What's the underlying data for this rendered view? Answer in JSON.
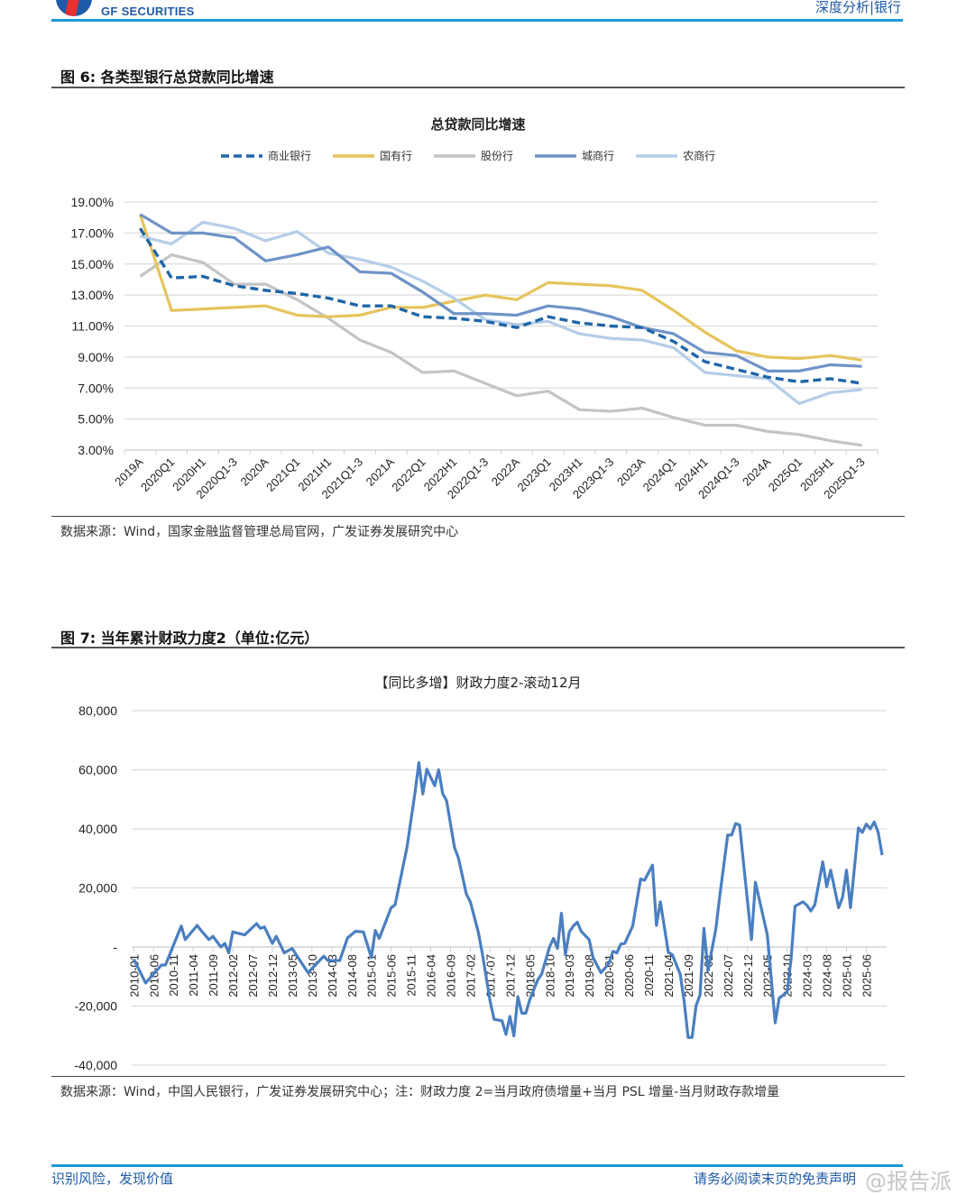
{
  "header": {
    "logo_text": "GF SECURITIES",
    "right_text": "深度分析|银行",
    "accent_color": "#1a9ad6"
  },
  "figure6": {
    "title": "图 6: 各类型银行总贷款同比增速",
    "source": "数据来源：Wind，国家金融监督管理总局官网，广发证券发展研究中心"
  },
  "figure7": {
    "title": "图 7: 当年累计财政力度2（单位:亿元）",
    "source": "数据来源：Wind，中国人民银行，广发证券发展研究中心；注：财政力度 2=当月政府债增量+当月 PSL 增量-当月财政存款增量"
  },
  "footer": {
    "left": "识别风险，发现价值",
    "right": "请务必阅读末页的免责声明",
    "watermark": "@报告派"
  },
  "chart_data": [
    {
      "type": "line",
      "title": "总贷款同比增速",
      "xlabel": "",
      "ylabel": "",
      "ylim": [
        3,
        19
      ],
      "yticks": [
        "19.00%",
        "17.00%",
        "15.00%",
        "13.00%",
        "11.00%",
        "9.00%",
        "7.00%",
        "5.00%",
        "3.00%"
      ],
      "ytick_values": [
        19,
        17,
        15,
        13,
        11,
        9,
        7,
        5,
        3
      ],
      "grid": true,
      "legend_position": "top",
      "categories": [
        "2019A",
        "2020Q1",
        "2020H1",
        "2020Q1-3",
        "2020A",
        "2021Q1",
        "2021H1",
        "2021Q1-3",
        "2021A",
        "2022Q1",
        "2022H1",
        "2022Q1-3",
        "2022A",
        "2023Q1",
        "2023H1",
        "2023Q1-3",
        "2023A",
        "2024Q1",
        "2024H1",
        "2024Q1-3",
        "2024A",
        "2025Q1",
        "2025H1",
        "2025Q1-3"
      ],
      "series": [
        {
          "name": "商业银行",
          "color": "#1f66a8",
          "dashed": true,
          "values": [
            17.3,
            14.1,
            14.2,
            13.6,
            13.3,
            13.1,
            12.8,
            12.3,
            12.3,
            11.6,
            11.5,
            11.3,
            10.9,
            11.6,
            11.2,
            11.0,
            10.9,
            10.0,
            8.7,
            8.2,
            7.7,
            7.4,
            7.6,
            7.3
          ]
        },
        {
          "name": "国有行",
          "color": "#e6c45c",
          "dashed": false,
          "values": [
            18.2,
            12.0,
            12.1,
            12.2,
            12.3,
            11.7,
            11.6,
            11.7,
            12.2,
            12.2,
            12.6,
            13.0,
            12.7,
            13.8,
            13.7,
            13.6,
            13.3,
            12.0,
            10.6,
            9.4,
            9.0,
            8.9,
            9.1,
            8.8
          ]
        },
        {
          "name": "股份行",
          "color": "#c4c4c4",
          "dashed": false,
          "values": [
            14.2,
            15.6,
            15.1,
            13.7,
            13.7,
            12.7,
            11.5,
            10.1,
            9.3,
            8.0,
            8.1,
            7.3,
            6.5,
            6.8,
            5.6,
            5.5,
            5.7,
            5.1,
            4.6,
            4.6,
            4.2,
            4.0,
            3.6,
            3.3
          ]
        },
        {
          "name": "城商行",
          "color": "#6f93c8",
          "dashed": false,
          "values": [
            18.2,
            17.0,
            17.0,
            16.7,
            15.2,
            15.6,
            16.1,
            14.5,
            14.4,
            13.2,
            11.8,
            11.8,
            11.7,
            12.3,
            12.1,
            11.6,
            10.9,
            10.5,
            9.3,
            9.1,
            8.1,
            8.1,
            8.5,
            8.4
          ]
        },
        {
          "name": "农商行",
          "color": "#b5cde8",
          "dashed": false,
          "values": [
            16.8,
            16.3,
            17.7,
            17.3,
            16.5,
            17.1,
            15.7,
            15.3,
            14.8,
            13.9,
            12.8,
            11.4,
            11.1,
            11.3,
            10.5,
            10.2,
            10.1,
            9.6,
            8.0,
            7.8,
            7.6,
            6.0,
            6.7,
            6.9
          ]
        }
      ]
    },
    {
      "type": "line",
      "title": "【同比多增】财政力度2-滚动12月",
      "xlabel": "",
      "ylabel": "",
      "ylim": [
        -40000,
        80000
      ],
      "yticks": [
        "80,000",
        "60,000",
        "40,000",
        "20,000",
        "-",
        "-20,000",
        "-40,000"
      ],
      "ytick_values": [
        80000,
        60000,
        40000,
        20000,
        0,
        -20000,
        -40000
      ],
      "grid": true,
      "x_start": "2010-01",
      "xticks": [
        "2010-01",
        "2010-06",
        "2010-11",
        "2011-04",
        "2011-09",
        "2012-02",
        "2012-07",
        "2012-12",
        "2013-05",
        "2013-10",
        "2014-03",
        "2014-08",
        "2015-01",
        "2015-06",
        "2015-11",
        "2016-04",
        "2016-09",
        "2017-02",
        "2017-07",
        "2017-12",
        "2018-05",
        "2018-10",
        "2019-03",
        "2019-08",
        "2020-01",
        "2020-06",
        "2020-11",
        "2021-04",
        "2021-09",
        "2022-02",
        "2022-07",
        "2022-12",
        "2023-05",
        "2023-10",
        "2024-03",
        "2024-08",
        "2025-01",
        "2025-06"
      ],
      "series": [
        {
          "name": "财政力度2-滚动12月",
          "color": "#4a7fc1",
          "month_index": [
            0,
            3,
            7,
            8,
            10,
            12,
            13,
            16,
            17,
            19,
            20,
            22,
            23,
            24,
            25,
            28,
            31,
            32,
            33,
            35,
            36,
            38,
            40,
            44,
            48,
            49,
            52,
            54,
            56,
            58,
            60,
            61,
            62,
            65,
            66,
            69,
            71,
            72,
            73,
            74,
            76,
            77,
            78,
            79,
            81,
            82,
            84,
            85,
            87,
            88,
            90,
            91,
            93,
            94,
            95,
            96,
            97,
            98,
            99,
            100,
            102,
            103,
            105,
            106,
            107,
            108,
            109,
            110,
            111,
            112,
            113,
            115,
            116,
            118,
            120,
            121,
            122,
            123,
            124,
            126,
            128,
            129,
            131,
            132,
            133,
            135,
            136,
            138,
            139,
            140,
            141,
            142,
            143,
            144,
            145,
            147,
            148,
            150,
            151,
            152,
            153,
            156,
            157,
            160,
            162,
            163,
            165,
            166,
            167,
            169,
            170,
            171,
            172,
            174,
            175,
            176,
            178,
            179,
            180,
            181,
            183,
            184,
            185,
            186,
            187,
            188,
            189
          ],
          "values": [
            -4100,
            -12200,
            -6100,
            -6100,
            500,
            7100,
            2500,
            7300,
            5600,
            2500,
            3600,
            0,
            1200,
            -2000,
            5100,
            4100,
            7900,
            6300,
            6800,
            1200,
            3600,
            -2000,
            -500,
            -8700,
            -3100,
            -4600,
            -4600,
            3100,
            5300,
            5100,
            -3600,
            5600,
            2900,
            13300,
            14300,
            33700,
            52000,
            62400,
            51800,
            60200,
            54600,
            60000,
            52000,
            49500,
            33700,
            30100,
            17900,
            15300,
            5100,
            -2000,
            -18400,
            -24500,
            -25000,
            -29600,
            -23500,
            -30100,
            -16800,
            -22400,
            -22400,
            -17900,
            -11200,
            -9200,
            0,
            2900,
            -500,
            11400,
            -2600,
            5100,
            7100,
            8400,
            5300,
            2500,
            -3600,
            -8700,
            -5600,
            -1500,
            -2000,
            1000,
            1200,
            7100,
            23000,
            22600,
            27700,
            7300,
            15300,
            -1800,
            -2600,
            -9200,
            -18400,
            -30600,
            -30600,
            -19900,
            -16300,
            6300,
            -8000,
            6100,
            17300,
            37900,
            37900,
            41800,
            41300,
            2500,
            21900,
            4100,
            -25700,
            -17300,
            -15300,
            -4100,
            13800,
            15300,
            14100,
            12200,
            14300,
            28800,
            20400,
            26000,
            13300,
            16800,
            26000,
            13300,
            40300,
            38800,
            41600,
            40000,
            42300,
            38800,
            31100
          ]
        }
      ]
    }
  ]
}
